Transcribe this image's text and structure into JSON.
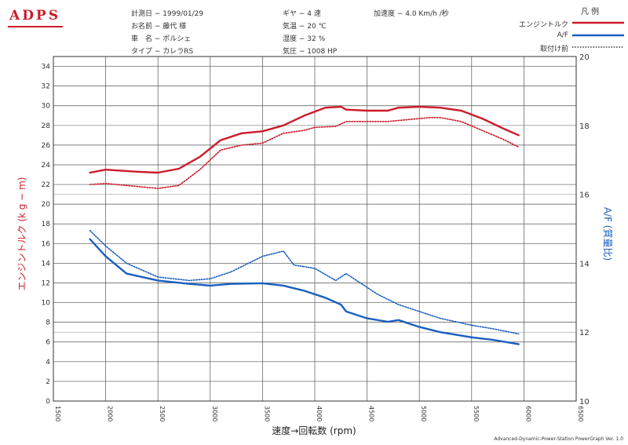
{
  "brand": "ADPS",
  "header": {
    "date": "計測日 − 1999/01/29",
    "name": "お名前 − 藤代 様",
    "car": "車　名 − ポルシェ",
    "type": "タイプ − カレラRS",
    "gear": "ギヤ − 4 速",
    "temp": "気温 − 20 ℃",
    "humidity": "湿度 − 32 %",
    "pressure": "気圧 − 1008 HP",
    "accel": "加速度 − 4.0 Km/h /秒"
  },
  "legend": {
    "title": "凡 例",
    "items": [
      {
        "label": "エンジントルク",
        "color": "#cc1b2a",
        "style": "solid"
      },
      {
        "label": "A/F",
        "color": "#1a5fbf",
        "style": "solid"
      },
      {
        "label": "取付け前",
        "color": "#333333",
        "style": "dotted"
      }
    ]
  },
  "footer": "Advanced-Dynamic-Power-Station PowerGraph Ver. 1.0",
  "chart_data": {
    "type": "line",
    "xlabel": "速度→回転数 (rpm)",
    "ylabel": "エンジントルク (k g − m)",
    "y2label": "A/F (質量比)",
    "xlim": [
      1500,
      6500
    ],
    "xticks": [
      1500,
      2000,
      2500,
      3000,
      3500,
      4000,
      4500,
      5000,
      5500,
      6000,
      6500
    ],
    "ylim": [
      0,
      35
    ],
    "yticks": [
      0,
      2,
      4,
      6,
      8,
      10,
      12,
      14,
      16,
      18,
      20,
      22,
      24,
      26,
      28,
      30,
      32,
      34
    ],
    "y2lim": [
      10,
      20
    ],
    "y2ticks": [
      10,
      12,
      14,
      16,
      18,
      20
    ],
    "grid": true,
    "series": [
      {
        "name": "エンジントルク",
        "axis": "left",
        "color": "#cc1b2a",
        "style": "solid",
        "x": [
          1850,
          2000,
          2300,
          2500,
          2700,
          2900,
          3100,
          3300,
          3500,
          3700,
          3900,
          4100,
          4250,
          4300,
          4500,
          4700,
          4800,
          5000,
          5200,
          5400,
          5600,
          5800,
          5950
        ],
        "y": [
          23.2,
          23.5,
          23.3,
          23.2,
          23.6,
          24.8,
          26.5,
          27.2,
          27.4,
          28.0,
          29.0,
          29.8,
          29.9,
          29.6,
          29.5,
          29.5,
          29.8,
          29.9,
          29.8,
          29.5,
          28.7,
          27.7,
          27.0
        ]
      },
      {
        "name": "エンジントルク 取付け前",
        "axis": "left",
        "color": "#cc1b2a",
        "style": "dotted",
        "x": [
          1850,
          2000,
          2300,
          2500,
          2700,
          2900,
          3100,
          3300,
          3500,
          3700,
          3900,
          4000,
          4200,
          4300,
          4500,
          4700,
          4900,
          5100,
          5200,
          5400,
          5600,
          5800,
          5950
        ],
        "y": [
          22.0,
          22.1,
          21.8,
          21.6,
          21.9,
          23.5,
          25.5,
          26.0,
          26.2,
          27.2,
          27.5,
          27.8,
          27.9,
          28.4,
          28.4,
          28.4,
          28.6,
          28.8,
          28.8,
          28.4,
          27.5,
          26.6,
          25.8
        ]
      },
      {
        "name": "A/F",
        "axis": "right",
        "color": "#1a5fbf",
        "style": "solid",
        "x": [
          1850,
          2000,
          2200,
          2500,
          2800,
          3000,
          3200,
          3500,
          3700,
          3900,
          4100,
          4250,
          4300,
          4500,
          4700,
          4800,
          5000,
          5200,
          5500,
          5700,
          5950
        ],
        "y": [
          14.7,
          14.2,
          13.7,
          13.5,
          13.4,
          13.35,
          13.4,
          13.42,
          13.35,
          13.2,
          13.0,
          12.8,
          12.6,
          12.4,
          12.3,
          12.35,
          12.15,
          12.0,
          11.85,
          11.78,
          11.65
        ]
      },
      {
        "name": "A/F 取付け前",
        "axis": "right",
        "color": "#1a5fbf",
        "style": "dotted",
        "x": [
          1850,
          2000,
          2200,
          2500,
          2800,
          3000,
          3200,
          3500,
          3700,
          3800,
          3900,
          4000,
          4200,
          4300,
          4400,
          4600,
          4800,
          5000,
          5200,
          5500,
          5700,
          5950
        ],
        "y": [
          14.95,
          14.5,
          14.0,
          13.6,
          13.5,
          13.55,
          13.75,
          14.2,
          14.35,
          13.95,
          13.9,
          13.85,
          13.5,
          13.7,
          13.5,
          13.1,
          12.8,
          12.6,
          12.4,
          12.2,
          12.1,
          11.95
        ]
      }
    ]
  }
}
